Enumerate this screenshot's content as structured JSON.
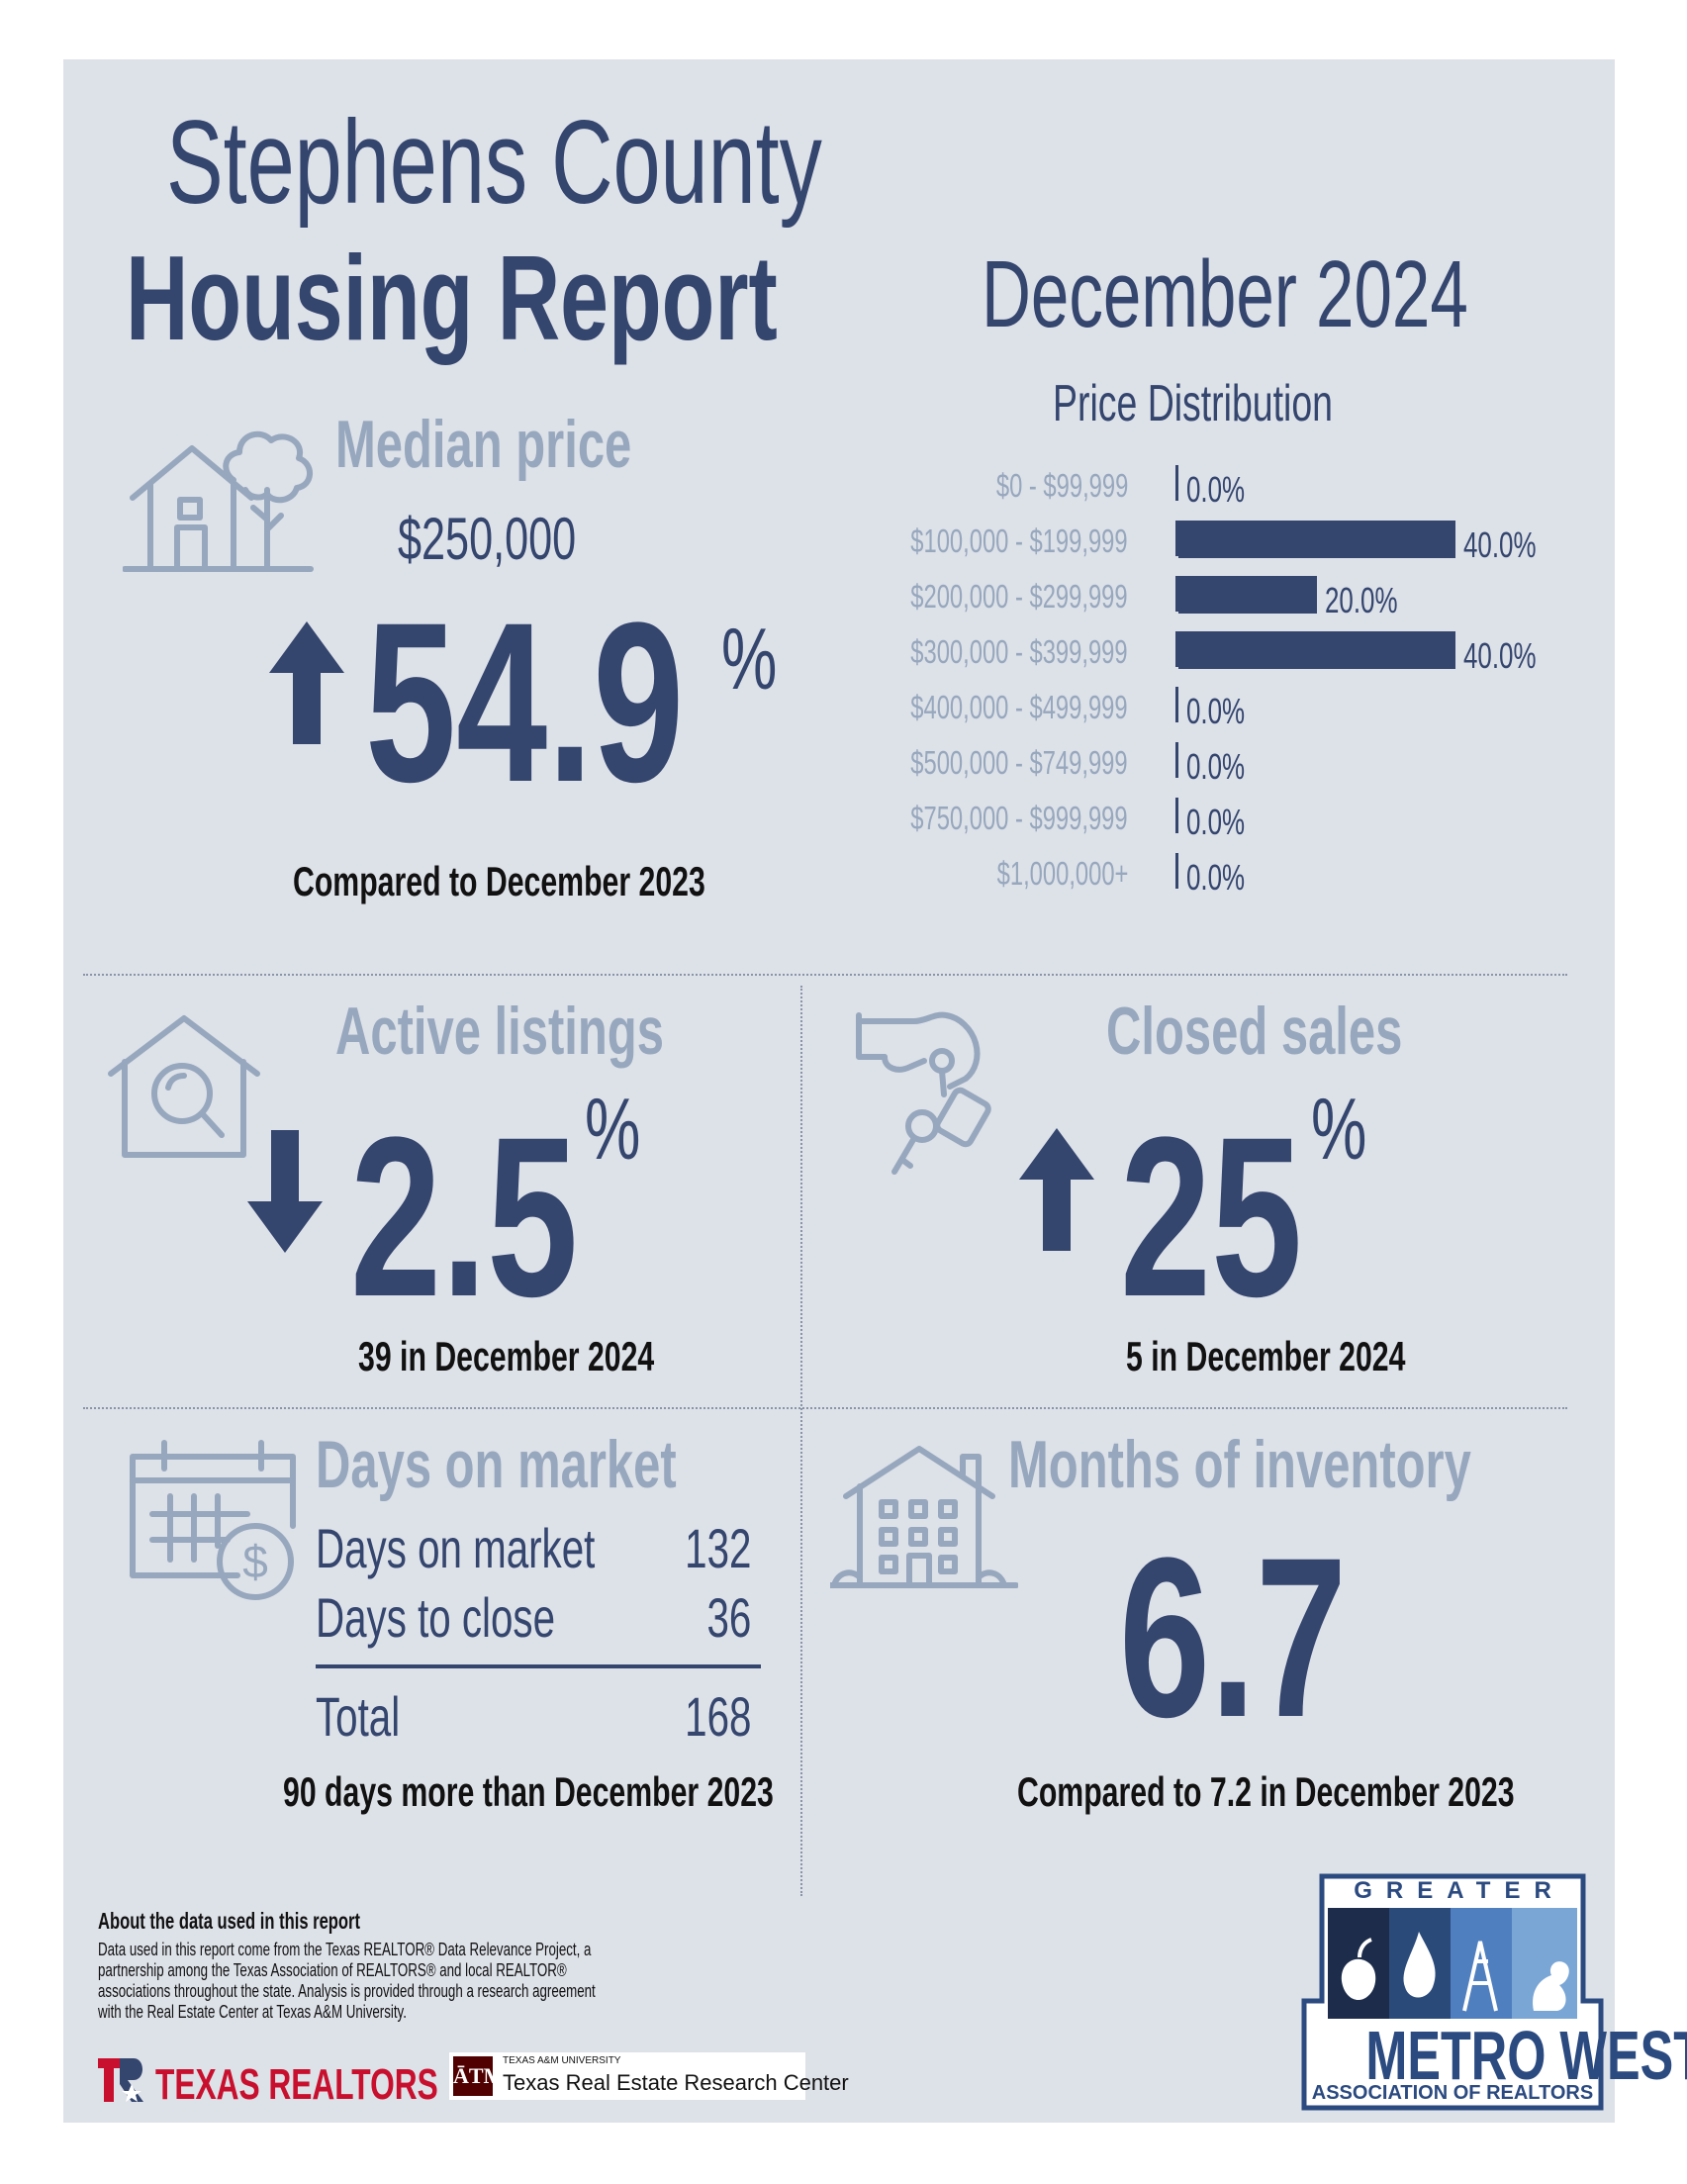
{
  "header": {
    "title_line1": "Stephens County",
    "title_line2": "Housing Report",
    "period": "December 2024"
  },
  "median_price": {
    "heading": "Median price",
    "value": "$250,000",
    "change": "54.9",
    "change_unit": "%",
    "direction": "up",
    "caption": "Compared to December 2023",
    "icon": "house-with-tree-icon"
  },
  "price_distribution": {
    "title": "Price Distribution",
    "rows": [
      {
        "label": "$0 - $99,999",
        "value": "0.0%"
      },
      {
        "label": "$100,000 - $199,999",
        "value": "40.0%"
      },
      {
        "label": "$200,000 - $299,999",
        "value": "20.0%"
      },
      {
        "label": "$300,000 - $399,999",
        "value": "40.0%"
      },
      {
        "label": "$400,000 - $499,999",
        "value": "0.0%"
      },
      {
        "label": "$500,000 - $749,999",
        "value": "0.0%"
      },
      {
        "label": "$750,000 - $999,999",
        "value": "0.0%"
      },
      {
        "label": "$1,000,000+",
        "value": "0.0%"
      }
    ]
  },
  "chart_data": {
    "type": "bar",
    "title": "Price Distribution",
    "categories": [
      "$0 - $99,999",
      "$100,000 - $199,999",
      "$200,000 - $299,999",
      "$300,000 - $399,999",
      "$400,000 - $499,999",
      "$500,000 - $749,999",
      "$750,000 - $999,999",
      "$1,000,000+"
    ],
    "values": [
      0.0,
      40.0,
      20.0,
      40.0,
      0.0,
      0.0,
      0.0,
      0.0
    ],
    "orientation": "horizontal",
    "grid": false
  },
  "active_listings": {
    "heading": "Active listings",
    "change": "2.5",
    "change_unit": "%",
    "direction": "down",
    "caption": "39 in December 2024",
    "icon": "house-search-icon"
  },
  "closed_sales": {
    "heading": "Closed sales",
    "change": "25",
    "change_unit": "%",
    "direction": "up",
    "caption": "5 in December 2024",
    "icon": "hand-keys-icon"
  },
  "days_on_market": {
    "heading": "Days on market",
    "rows": [
      {
        "label": "Days on market",
        "value": "132"
      },
      {
        "label": "Days to close",
        "value": "36"
      }
    ],
    "total_label": "Total",
    "total_value": "168",
    "caption": "90 days more than December 2023",
    "icon": "calendar-dollar-icon"
  },
  "months_inventory": {
    "heading": "Months of inventory",
    "value": "6.7",
    "caption": "Compared to 7.2 in December 2023",
    "icon": "apartment-building-icon"
  },
  "about": {
    "title": "About the data used in this report",
    "text_lines": [
      "Data used in this report come from the Texas REALTOR® Data Relevance Project, a",
      "partnership among the Texas Association of REALTORS® and local REALTOR®",
      "associations throughout the state. Analysis is provided through a research agreement",
      "with the Real Estate Center at Texas A&M University."
    ]
  },
  "logos": {
    "texas_realtors": "TEXAS REALTORS",
    "tamu_small": "TEXAS A&M UNIVERSITY",
    "tamu_name": "Texas Real Estate Research Center",
    "tamu_mark": "ĀTM",
    "greater": "GREATER",
    "metro_west": "METRO WEST",
    "association": "ASSOCIATION OF REALTORS"
  },
  "colors": {
    "navy": "#34456e",
    "gray_blue": "#97a7bd",
    "panel": "#dde1e8",
    "texas_red": "#c8102e",
    "aggie_maroon": "#500000"
  }
}
